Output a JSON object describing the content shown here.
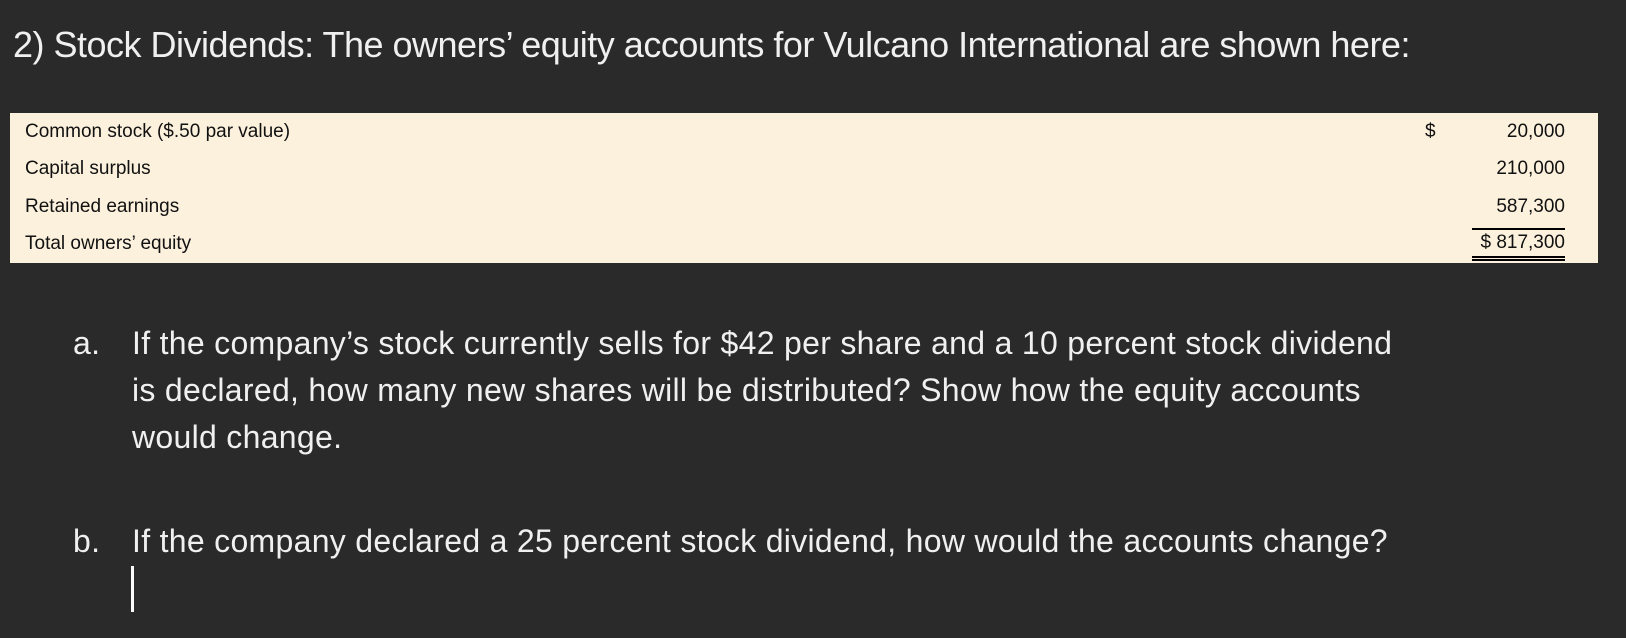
{
  "colors": {
    "page_background": "#2a2a2a",
    "text": "#f0f0f0",
    "table_background": "#fcf1dd",
    "table_text": "#111111",
    "cursor": "#fafafa"
  },
  "title": "2) Stock Dividends: The owners’ equity accounts for Vulcano International are shown here:",
  "equity_table": {
    "rows": [
      {
        "label": "Common stock ($.50 par value)",
        "currency": "$",
        "value": "20,000"
      },
      {
        "label": "Capital surplus",
        "currency": "",
        "value": "210,000"
      },
      {
        "label": "Retained earnings",
        "currency": "",
        "value": "587,300"
      },
      {
        "label": "Total owners’ equity",
        "currency": "",
        "value": "$ 817,300"
      }
    ]
  },
  "questions": [
    {
      "marker": "a.",
      "lines": [
        "If the company’s stock currently sells for $42 per share and a 10 percent stock dividend",
        "is declared, how many new shares will be distributed? Show how the equity accounts",
        "would change."
      ]
    },
    {
      "marker": "b.",
      "lines": [
        "If the company declared a 25 percent stock dividend, how would the accounts change?"
      ]
    }
  ]
}
